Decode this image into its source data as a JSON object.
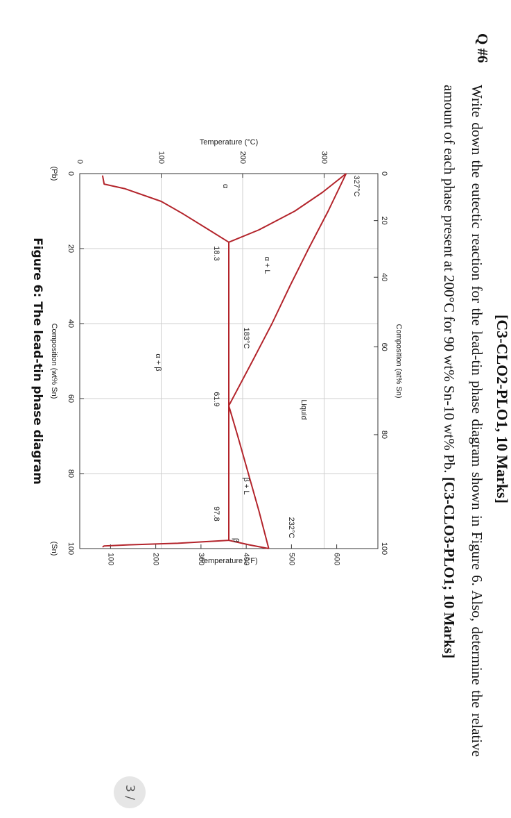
{
  "document": {
    "header_partial": "[C3-CLO2-PLO1, 10 Marks]",
    "question_number": "Q #6",
    "question_text": "Write down the eutectic reaction for the lead-tin phase diagram shown in Figure 6. Also, determine the relative amount of each phase present at 200°C for 90 wt% Sn-10 wt% Pb.",
    "question_marks": "[C3-CLO3-PLO1; 10 Marks]",
    "caption": "Figure 6: The lead-tin phase diagram",
    "page_indicator": "3 /"
  },
  "chart_data": {
    "type": "line",
    "xlabel": "Composition (wt% Sn)",
    "x2label": "Composition (at% Sn)",
    "ylabel": "Temperature (°C)",
    "y2label": "Temperature (°F)",
    "x_end_labels": [
      "(Pb)",
      "(Sn)"
    ],
    "xlim": [
      0,
      100
    ],
    "xticks": [
      0,
      20,
      40,
      60,
      80,
      100
    ],
    "x2ticks": [
      0,
      20,
      40,
      60,
      80,
      100
    ],
    "ylim": [
      0,
      366
    ],
    "yticks": [
      0,
      100,
      200,
      300
    ],
    "y2lim": [
      32,
      691
    ],
    "y2ticks": [
      100,
      200,
      300,
      400,
      500,
      600
    ],
    "grid": true,
    "series": [
      {
        "color": "#b3242b",
        "x": [
          0,
          10,
          20,
          30,
          40,
          50,
          61.9
        ],
        "values": [
          327,
          305,
          281,
          258,
          236,
          212,
          183
        ]
      },
      {
        "color": "#b3242b",
        "x": [
          61.9,
          70,
          80,
          90,
          100
        ],
        "values": [
          183,
          194,
          207,
          220,
          232
        ]
      },
      {
        "color": "#b3242b",
        "x": [
          0,
          5,
          10,
          15,
          18.3
        ],
        "values": [
          327,
          298,
          264,
          220,
          183
        ]
      },
      {
        "color": "#b3242b",
        "x": [
          18.3,
          14.8,
          10.5,
          7.4,
          4,
          2.8,
          0.5
        ],
        "values": [
          183,
          157,
          125,
          100,
          55,
          30,
          28
        ]
      },
      {
        "color": "#b3242b",
        "x": [
          18.3,
          97.8
        ],
        "values": [
          183,
          183
        ]
      },
      {
        "color": "#b3242b",
        "x": [
          97.8,
          99,
          100
        ],
        "values": [
          183,
          208,
          232
        ]
      },
      {
        "color": "#b3242b",
        "x": [
          97.8,
          98.6,
          99,
          99.3,
          99.6
        ],
        "values": [
          183,
          120,
          60,
          30,
          28
        ]
      }
    ],
    "annotations": [
      "327°C",
      "α",
      "α + L",
      "183°C",
      "18.3",
      "61.9",
      "97.8",
      "α + β",
      "Liquid",
      "β + L",
      "232°C",
      "β"
    ]
  }
}
